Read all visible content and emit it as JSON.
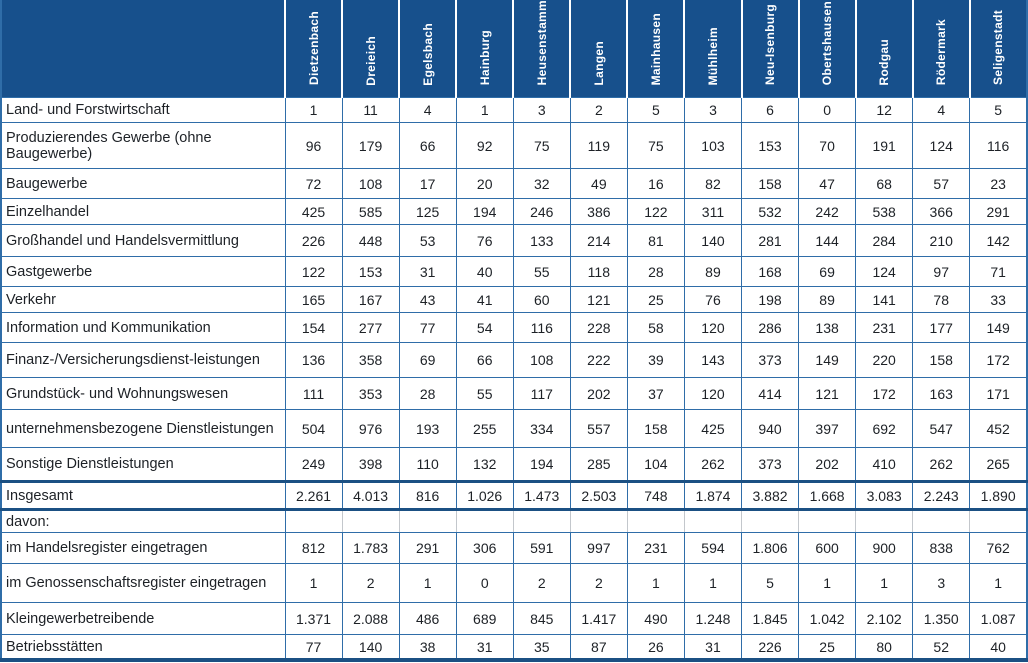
{
  "colors": {
    "header_bg": "#17508c",
    "grid": "#2f6da8",
    "rule": "#1b5083",
    "text": "#1d2126",
    "davon_grid": "#c3c7cc"
  },
  "table": {
    "columns": [
      "Dietzenbach",
      "Dreieich",
      "Egelsbach",
      "Hainburg",
      "Heusenstamm",
      "Langen",
      "Mainhausen",
      "Mühlheim",
      "Neu-Isenburg",
      "Obertshausen",
      "Rodgau",
      "Rödermark",
      "Seligenstadt"
    ],
    "rows": [
      {
        "label": "Land- und Forstwirtschaft",
        "type": "sector",
        "values": [
          "1",
          "11",
          "4",
          "1",
          "3",
          "2",
          "5",
          "3",
          "6",
          "0",
          "12",
          "4",
          "5"
        ]
      },
      {
        "label": "Produzierendes Gewerbe (ohne Baugewerbe)",
        "type": "sector",
        "values": [
          "96",
          "179",
          "66",
          "92",
          "75",
          "119",
          "75",
          "103",
          "153",
          "70",
          "191",
          "124",
          "116"
        ]
      },
      {
        "label": "Baugewerbe",
        "type": "sector",
        "values": [
          "72",
          "108",
          "17",
          "20",
          "32",
          "49",
          "16",
          "82",
          "158",
          "47",
          "68",
          "57",
          "23"
        ]
      },
      {
        "label": "Einzelhandel",
        "type": "sector",
        "values": [
          "425",
          "585",
          "125",
          "194",
          "246",
          "386",
          "122",
          "311",
          "532",
          "242",
          "538",
          "366",
          "291"
        ]
      },
      {
        "label": "Großhandel und Handelsvermittlung",
        "type": "sector",
        "values": [
          "226",
          "448",
          "53",
          "76",
          "133",
          "214",
          "81",
          "140",
          "281",
          "144",
          "284",
          "210",
          "142"
        ]
      },
      {
        "label": "Gastgewerbe",
        "type": "sector",
        "values": [
          "122",
          "153",
          "31",
          "40",
          "55",
          "118",
          "28",
          "89",
          "168",
          "69",
          "124",
          "97",
          "71"
        ]
      },
      {
        "label": "Verkehr",
        "type": "sector",
        "values": [
          "165",
          "167",
          "43",
          "41",
          "60",
          "121",
          "25",
          "76",
          "198",
          "89",
          "141",
          "78",
          "33"
        ]
      },
      {
        "label": "Information und Kommunikation",
        "type": "sector",
        "values": [
          "154",
          "277",
          "77",
          "54",
          "116",
          "228",
          "58",
          "120",
          "286",
          "138",
          "231",
          "177",
          "149"
        ]
      },
      {
        "label": "Finanz-/Versicherungsdienst-leistungen",
        "type": "sector",
        "values": [
          "136",
          "358",
          "69",
          "66",
          "108",
          "222",
          "39",
          "143",
          "373",
          "149",
          "220",
          "158",
          "172"
        ]
      },
      {
        "label": "Grundstück- und Wohnungswesen",
        "type": "sector",
        "values": [
          "111",
          "353",
          "28",
          "55",
          "117",
          "202",
          "37",
          "120",
          "414",
          "121",
          "172",
          "163",
          "171"
        ]
      },
      {
        "label": "unternehmensbezogene Dienstleistungen",
        "type": "sector",
        "values": [
          "504",
          "976",
          "193",
          "255",
          "334",
          "557",
          "158",
          "425",
          "940",
          "397",
          "692",
          "547",
          "452"
        ]
      },
      {
        "label": "Sonstige Dienstleistungen",
        "type": "sector",
        "values": [
          "249",
          "398",
          "110",
          "132",
          "194",
          "285",
          "104",
          "262",
          "373",
          "202",
          "410",
          "262",
          "265"
        ]
      },
      {
        "label": "Insgesamt",
        "type": "total",
        "values": [
          "2.261",
          "4.013",
          "816",
          "1.026",
          "1.473",
          "2.503",
          "748",
          "1.874",
          "3.882",
          "1.668",
          "3.083",
          "2.243",
          "1.890"
        ]
      },
      {
        "label": "davon:",
        "type": "davon",
        "values": [
          "",
          "",
          "",
          "",
          "",
          "",
          "",
          "",
          "",
          "",
          "",
          "",
          ""
        ]
      },
      {
        "label": "im Handelsregister eingetragen",
        "type": "breakdown",
        "values": [
          "812",
          "1.783",
          "291",
          "306",
          "591",
          "997",
          "231",
          "594",
          "1.806",
          "600",
          "900",
          "838",
          "762"
        ]
      },
      {
        "label": "im Genossenschaftsregister eingetragen",
        "type": "breakdown",
        "values": [
          "1",
          "2",
          "1",
          "0",
          "2",
          "2",
          "1",
          "1",
          "5",
          "1",
          "1",
          "3",
          "1"
        ]
      },
      {
        "label": "Kleingewerbetreibende",
        "type": "breakdown",
        "values": [
          "1.371",
          "2.088",
          "486",
          "689",
          "845",
          "1.417",
          "490",
          "1.248",
          "1.845",
          "1.042",
          "2.102",
          "1.350",
          "1.087"
        ]
      },
      {
        "label": "Betriebsstätten",
        "type": "breakdown",
        "values": [
          "77",
          "140",
          "38",
          "31",
          "35",
          "87",
          "26",
          "31",
          "226",
          "25",
          "80",
          "52",
          "40"
        ]
      }
    ]
  }
}
